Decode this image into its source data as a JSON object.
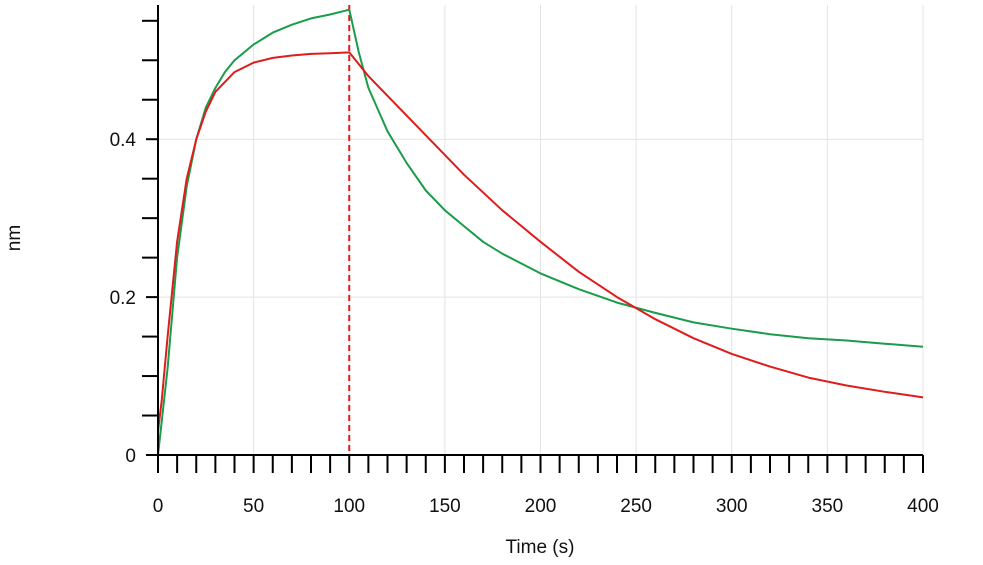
{
  "chart_data": {
    "type": "line",
    "title": "",
    "xlabel": "Time (s)",
    "ylabel": "nm",
    "xlim": [
      0,
      400
    ],
    "ylim": [
      0,
      0.57
    ],
    "grid": true,
    "x_ticks": [
      0,
      50,
      100,
      150,
      200,
      250,
      300,
      350,
      400
    ],
    "x_tick_labels": [
      "0",
      "50",
      "100",
      "150",
      "200",
      "250",
      "300",
      "350",
      "400"
    ],
    "y_ticks": [
      0,
      0.2,
      0.4
    ],
    "y_tick_labels": [
      "0",
      "0.2",
      "0.4"
    ],
    "vertical_markers": [
      0,
      100
    ],
    "series": [
      {
        "color": "#1a9c4a",
        "x": [
          0,
          5,
          10,
          15,
          20,
          25,
          30,
          35,
          40,
          50,
          60,
          70,
          80,
          90,
          100,
          105,
          110,
          120,
          130,
          140,
          150,
          160,
          170,
          180,
          200,
          220,
          240,
          260,
          280,
          300,
          320,
          340,
          360,
          380,
          400
        ],
        "values": [
          0.0,
          0.11,
          0.25,
          0.34,
          0.4,
          0.44,
          0.465,
          0.485,
          0.5,
          0.52,
          0.535,
          0.545,
          0.553,
          0.558,
          0.564,
          0.51,
          0.465,
          0.41,
          0.37,
          0.335,
          0.31,
          0.29,
          0.27,
          0.255,
          0.23,
          0.21,
          0.193,
          0.18,
          0.168,
          0.16,
          0.153,
          0.148,
          0.145,
          0.141,
          0.137
        ]
      },
      {
        "color": "#e01b1b",
        "x": [
          0,
          2,
          5,
          10,
          15,
          20,
          25,
          30,
          40,
          50,
          60,
          70,
          80,
          90,
          100,
          110,
          120,
          140,
          160,
          180,
          200,
          220,
          240,
          260,
          280,
          300,
          320,
          340,
          360,
          380,
          400
        ],
        "values": [
          0.03,
          0.07,
          0.15,
          0.27,
          0.35,
          0.4,
          0.435,
          0.46,
          0.485,
          0.497,
          0.503,
          0.506,
          0.508,
          0.509,
          0.51,
          0.48,
          0.455,
          0.405,
          0.355,
          0.31,
          0.27,
          0.232,
          0.2,
          0.172,
          0.148,
          0.128,
          0.112,
          0.098,
          0.088,
          0.08,
          0.073
        ]
      }
    ]
  }
}
